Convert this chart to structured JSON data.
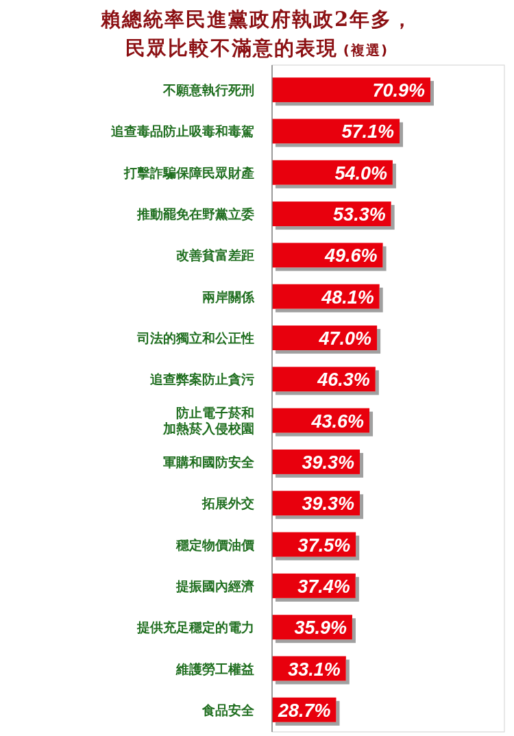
{
  "chart_data": {
    "type": "bar",
    "orientation": "horizontal",
    "title": "賴總統率民進黨政府執政2年多，民眾比較不滿意的表現",
    "subtitle": "(複選)",
    "categories": [
      "不願意執行死刑",
      "追查毒品防止吸毒和毒駕",
      "打擊詐騙保障民眾財產",
      "推動罷免在野黨立委",
      "改善貧富差距",
      "兩岸關係",
      "司法的獨立和公正性",
      "追查弊案防止貪污",
      "防止電子菸和加熱菸入侵校園",
      "軍購和國防安全",
      "拓展外交",
      "穩定物價油價",
      "提振國內經濟",
      "提供充足穩定的電力",
      "維護勞工權益",
      "食品安全"
    ],
    "values": [
      70.9,
      57.1,
      54.0,
      53.3,
      49.6,
      48.1,
      47.0,
      46.3,
      43.6,
      39.3,
      39.3,
      37.5,
      37.4,
      35.9,
      33.1,
      28.7
    ],
    "value_labels": [
      "70.9%",
      "57.1%",
      "54.0%",
      "53.3%",
      "49.6%",
      "48.1%",
      "47.0%",
      "46.3%",
      "43.6%",
      "39.3%",
      "39.3%",
      "37.5%",
      "37.4%",
      "35.9%",
      "33.1%",
      "28.7%"
    ],
    "color": "#e8000f"
  }
}
